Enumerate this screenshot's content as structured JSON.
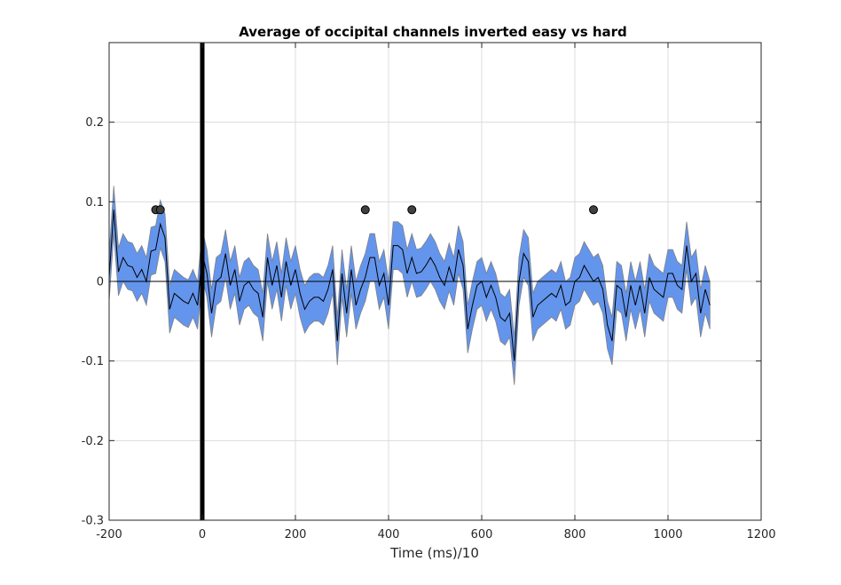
{
  "chart_data": {
    "type": "line",
    "title": "Average of occipital channels inverted easy vs hard",
    "xlabel": "Time (ms)/10",
    "ylabel": "",
    "xlim": [
      -200,
      1200
    ],
    "ylim": [
      -0.3,
      0.3
    ],
    "xticks": [
      -200,
      0,
      200,
      400,
      600,
      800,
      1000,
      1200
    ],
    "yticks": [
      -0.3,
      -0.2,
      -0.1,
      0,
      0.1,
      0.2
    ],
    "ytick_labels": [
      "-0.3",
      "-0.2",
      "-0.1",
      "0",
      "0.1",
      "0.2"
    ],
    "grid": true,
    "zero_line": 0,
    "event_line_x": 0,
    "colors": {
      "band": "#6495ED",
      "band_edge": "#808080",
      "mean": "#000000",
      "marker": "#404040",
      "grid": "#dcdcdc",
      "event": "#000000"
    },
    "band_halfwidth": 0.03,
    "series": [
      {
        "x": [
          -200,
          -190,
          -180,
          -170,
          -160,
          -150,
          -140,
          -130,
          -120,
          -110,
          -100,
          -90,
          -80,
          -70,
          -60,
          -50,
          -40,
          -30,
          -20,
          -10,
          0,
          10,
          20,
          30,
          40,
          50,
          60,
          70,
          80,
          90,
          100,
          110,
          120,
          130,
          140,
          150,
          160,
          170,
          180,
          190,
          200,
          210,
          220,
          230,
          240,
          250,
          260,
          270,
          280,
          290,
          300,
          310,
          320,
          330,
          340,
          350,
          360,
          370,
          380,
          390,
          400,
          410,
          420,
          430,
          440,
          450,
          460,
          470,
          480,
          490,
          500,
          510,
          520,
          530,
          540,
          550,
          560,
          570,
          580,
          590,
          600,
          610,
          620,
          630,
          640,
          650,
          660,
          670,
          680,
          690,
          700,
          710,
          720,
          730,
          740,
          750,
          760,
          770,
          780,
          790,
          800,
          810,
          820,
          830,
          840,
          850,
          860,
          870,
          880,
          890,
          900,
          910,
          920,
          930,
          940,
          950,
          960,
          970,
          980,
          990,
          1000,
          1010,
          1020,
          1030,
          1040,
          1050,
          1060,
          1070,
          1080,
          1090
        ],
        "y": [
          0.005,
          0.09,
          0.012,
          0.03,
          0.02,
          0.018,
          0.005,
          0.015,
          0.0,
          0.038,
          0.04,
          0.072,
          0.055,
          -0.035,
          -0.015,
          -0.02,
          -0.025,
          -0.028,
          -0.015,
          -0.03,
          0.035,
          0.01,
          -0.04,
          0.0,
          0.005,
          0.035,
          -0.005,
          0.015,
          -0.025,
          -0.005,
          0.0,
          -0.01,
          -0.015,
          -0.045,
          0.03,
          -0.005,
          0.02,
          -0.02,
          0.025,
          -0.005,
          0.015,
          -0.015,
          -0.035,
          -0.025,
          -0.02,
          -0.02,
          -0.025,
          -0.01,
          0.015,
          -0.075,
          0.01,
          -0.04,
          0.015,
          -0.03,
          -0.01,
          0.005,
          0.03,
          0.03,
          -0.005,
          0.01,
          -0.03,
          0.045,
          0.045,
          0.04,
          0.01,
          0.03,
          0.01,
          0.012,
          0.02,
          0.03,
          0.02,
          0.005,
          -0.005,
          0.018,
          0.0,
          0.04,
          0.02,
          -0.06,
          -0.03,
          -0.005,
          0.0,
          -0.02,
          -0.005,
          -0.02,
          -0.045,
          -0.05,
          -0.04,
          -0.1,
          0.0,
          0.035,
          0.025,
          -0.045,
          -0.03,
          -0.025,
          -0.02,
          -0.015,
          -0.02,
          -0.005,
          -0.03,
          -0.025,
          0.0,
          0.005,
          0.02,
          0.01,
          0.0,
          0.005,
          -0.01,
          -0.055,
          -0.075,
          -0.005,
          -0.01,
          -0.045,
          -0.005,
          -0.03,
          -0.005,
          -0.04,
          0.005,
          -0.01,
          -0.015,
          -0.02,
          0.01,
          0.01,
          -0.005,
          -0.01,
          0.045,
          0.0,
          0.01,
          -0.04,
          -0.01,
          -0.03
        ]
      }
    ],
    "markers": {
      "x": [
        -100,
        -90,
        350,
        450,
        840
      ],
      "y": [
        0.09,
        0.09,
        0.09,
        0.09,
        0.09
      ]
    }
  }
}
